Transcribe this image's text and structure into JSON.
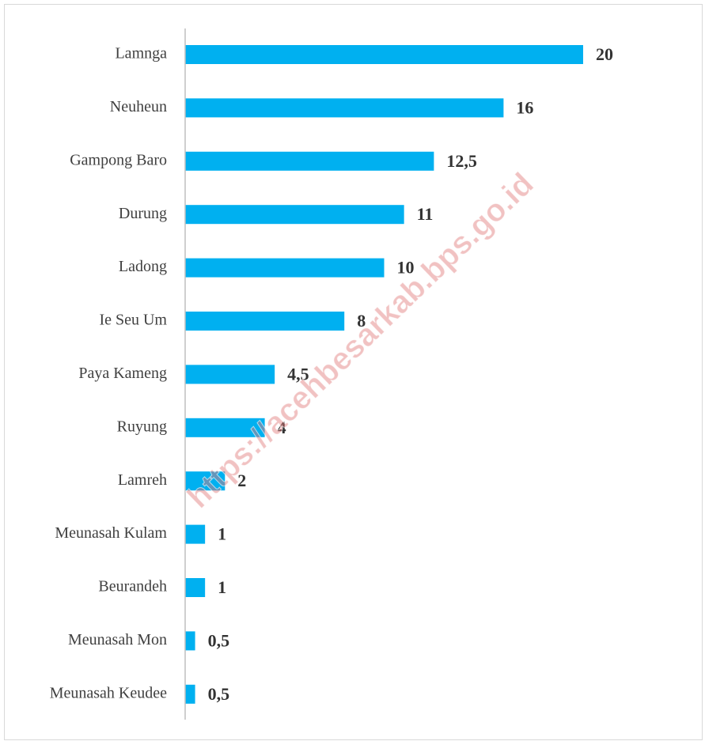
{
  "chart_data": {
    "type": "bar",
    "orientation": "horizontal",
    "categories": [
      "Lamnga",
      "Neuheun",
      "Gampong Baro",
      "Durung",
      "Ladong",
      "Ie Seu Um",
      "Paya Kameng",
      "Ruyung",
      "Lamreh",
      "Meunasah Kulam",
      "Beurandeh",
      "Meunasah Mon",
      "Meunasah Keudee"
    ],
    "values": [
      20,
      16,
      12.5,
      11,
      10,
      8,
      4.5,
      4,
      2,
      1,
      1,
      0.5,
      0.5
    ],
    "value_labels": [
      "20",
      "16",
      "12,5",
      "11",
      "10",
      "8",
      "4,5",
      "4",
      "2",
      "1",
      "1",
      "0,5",
      "0,5"
    ],
    "color": "#00b0f0",
    "xlim": [
      0,
      20
    ],
    "watermark": "https://acehbesarkab.bps.go.id"
  }
}
